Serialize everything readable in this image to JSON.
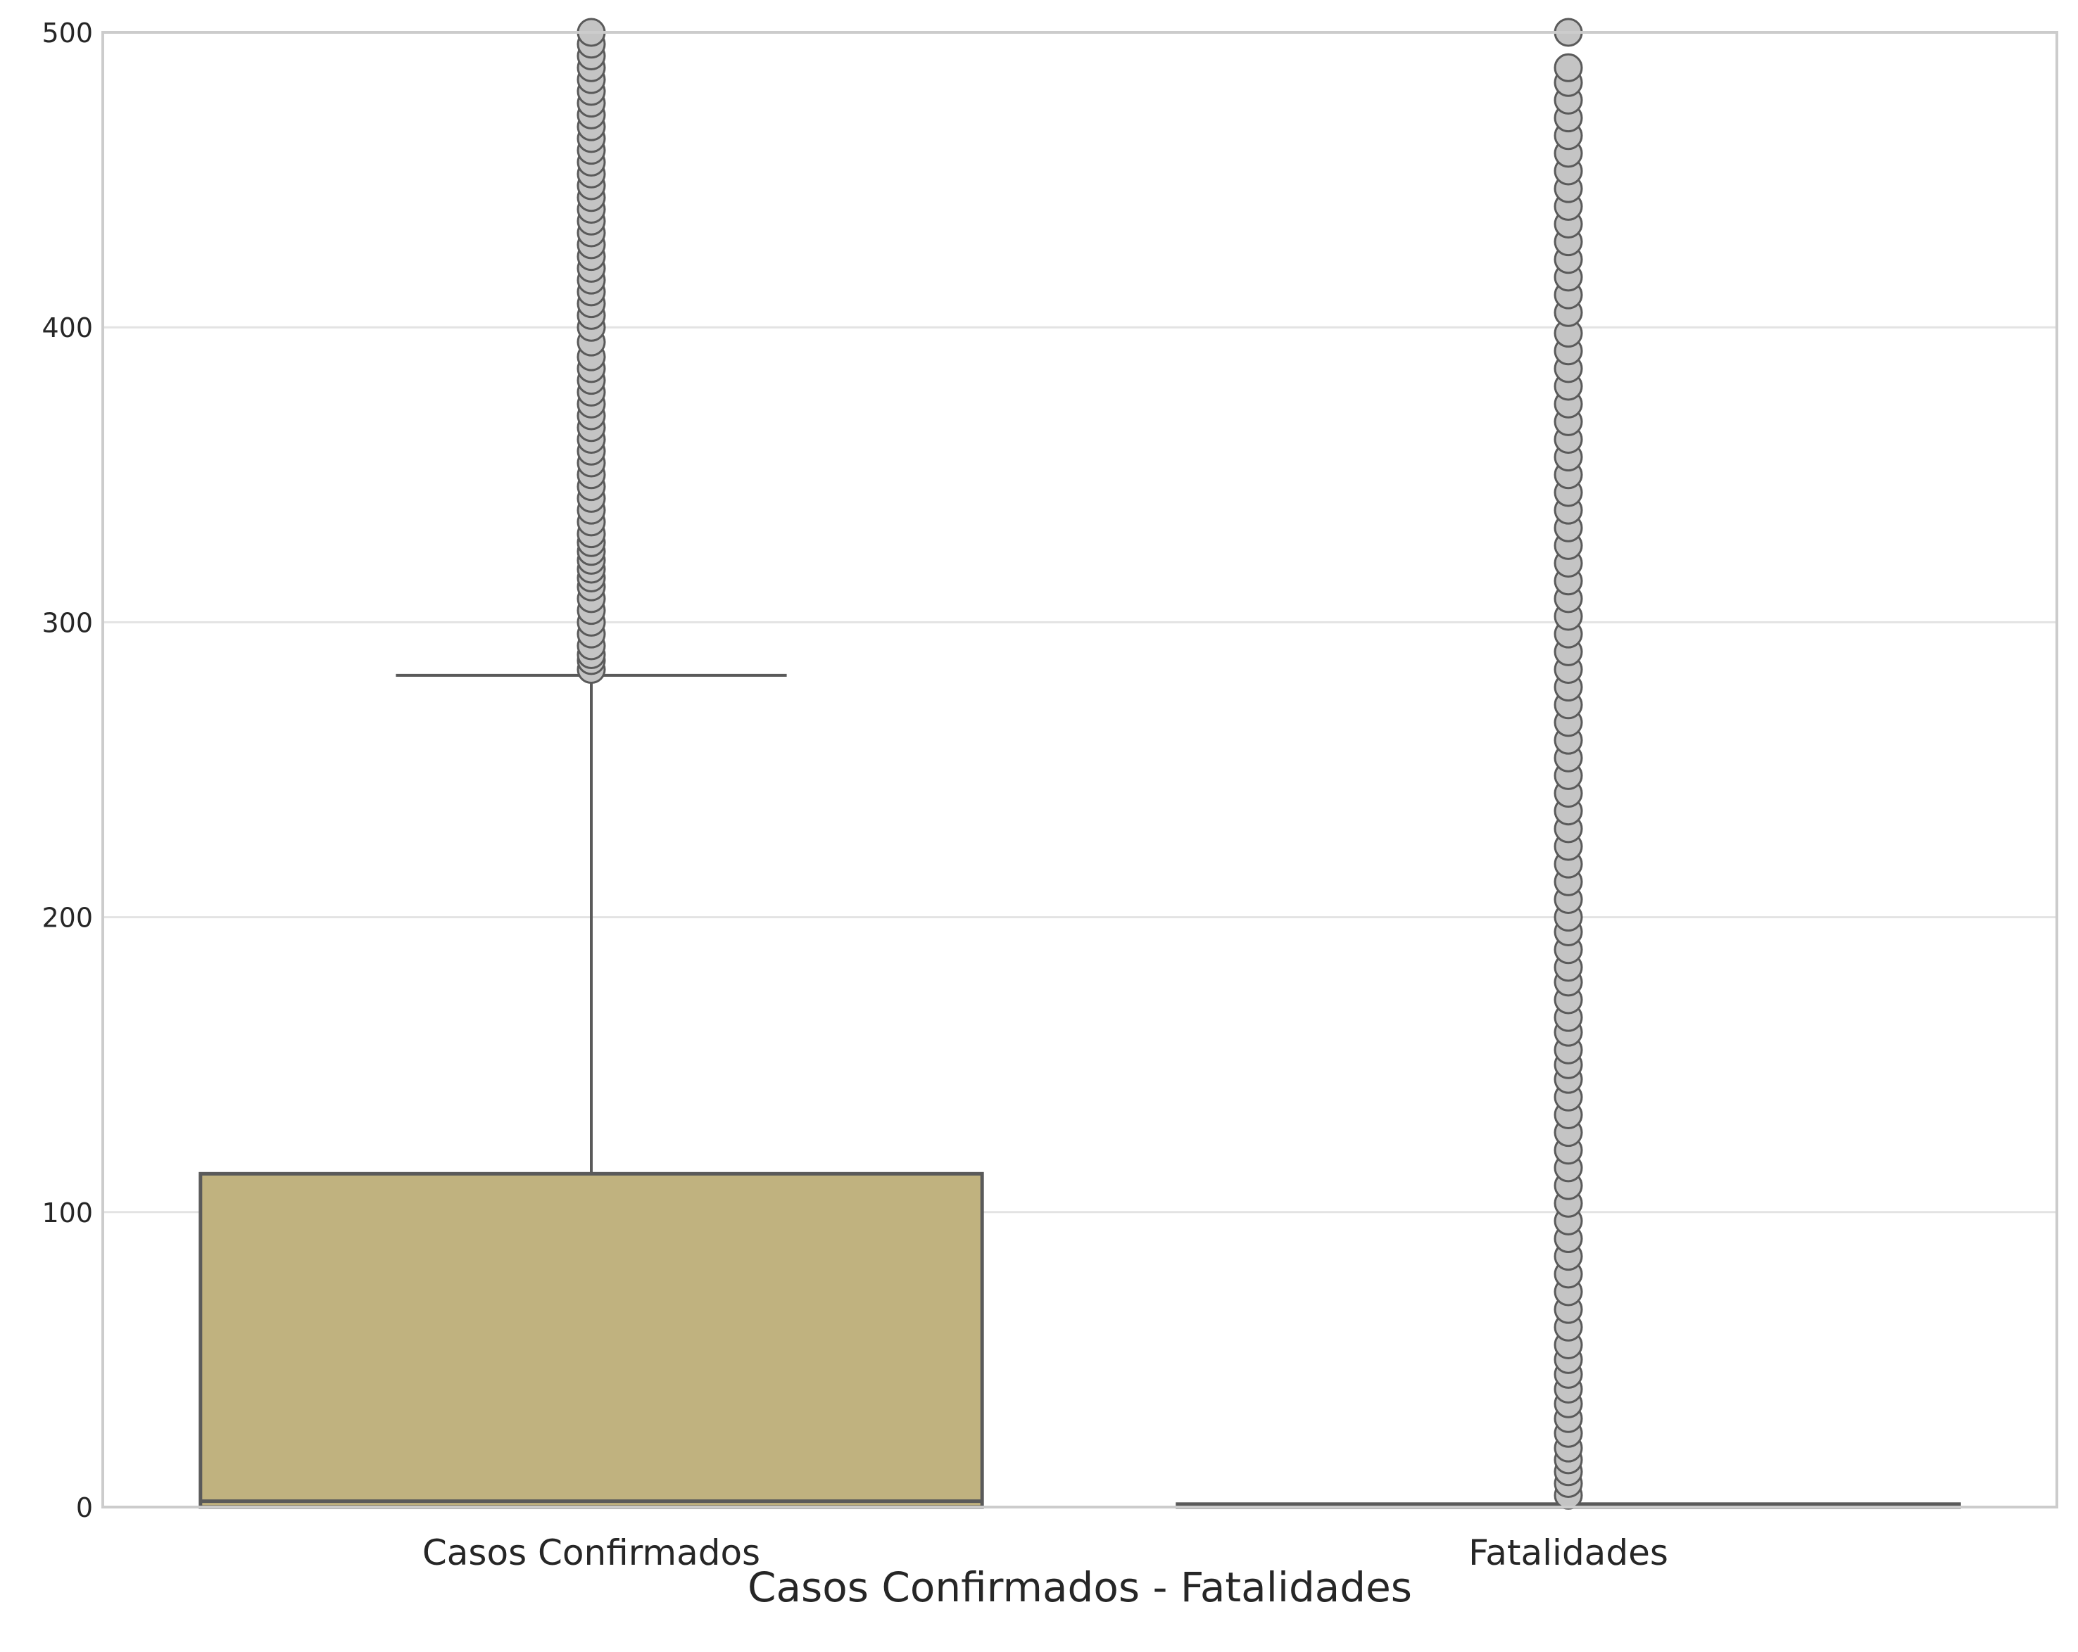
{
  "chart_data": {
    "type": "box",
    "xlabel": "Casos Confirmados - Fatalidades",
    "ylabel": "",
    "ylim": [
      0,
      500
    ],
    "yticks": [
      0,
      100,
      200,
      300,
      400,
      500
    ],
    "grid": "horizontal",
    "categories": [
      "Casos Confirmados",
      "Fatalidades"
    ],
    "colors": {
      "box_fill": "#c0b27f",
      "line": "#5a5a5a",
      "flier_fill": "#c4c4c4",
      "grid": "#e3e3e3",
      "spine": "#cccccc"
    },
    "boxes": [
      {
        "category": "Casos Confirmados",
        "q1": 0,
        "median": 2,
        "q3": 113,
        "whisker_low": 0,
        "whisker_high": 282,
        "outliers": [
          284,
          287,
          289,
          292,
          296,
          300,
          304,
          308,
          312,
          315,
          318,
          321,
          324,
          327,
          330,
          334,
          338,
          342,
          346,
          350,
          354,
          358,
          362,
          366,
          370,
          374,
          378,
          382,
          386,
          390,
          395,
          400,
          404,
          408,
          412,
          416,
          420,
          424,
          428,
          432,
          436,
          440,
          444,
          448,
          452,
          456,
          460,
          464,
          468,
          472,
          476,
          480,
          484,
          488,
          492,
          496,
          500
        ]
      },
      {
        "category": "Fatalidades",
        "q1": 0,
        "median": 0,
        "q3": 1,
        "whisker_low": 0,
        "whisker_high": 1,
        "outliers": [
          4,
          8,
          12,
          16,
          20,
          25,
          30,
          35,
          40,
          45,
          50,
          55,
          61,
          67,
          73,
          79,
          85,
          91,
          97,
          103,
          109,
          115,
          121,
          127,
          133,
          139,
          145,
          150,
          155,
          161,
          166,
          172,
          178,
          183,
          189,
          195,
          200,
          206,
          212,
          218,
          224,
          230,
          236,
          242,
          248,
          254,
          260,
          266,
          272,
          278,
          284,
          290,
          296,
          302,
          308,
          314,
          320,
          326,
          332,
          338,
          344,
          350,
          356,
          362,
          368,
          374,
          380,
          386,
          392,
          398,
          405,
          411,
          417,
          423,
          429,
          435,
          441,
          447,
          453,
          459,
          465,
          471,
          477,
          483,
          488,
          500
        ]
      }
    ]
  }
}
